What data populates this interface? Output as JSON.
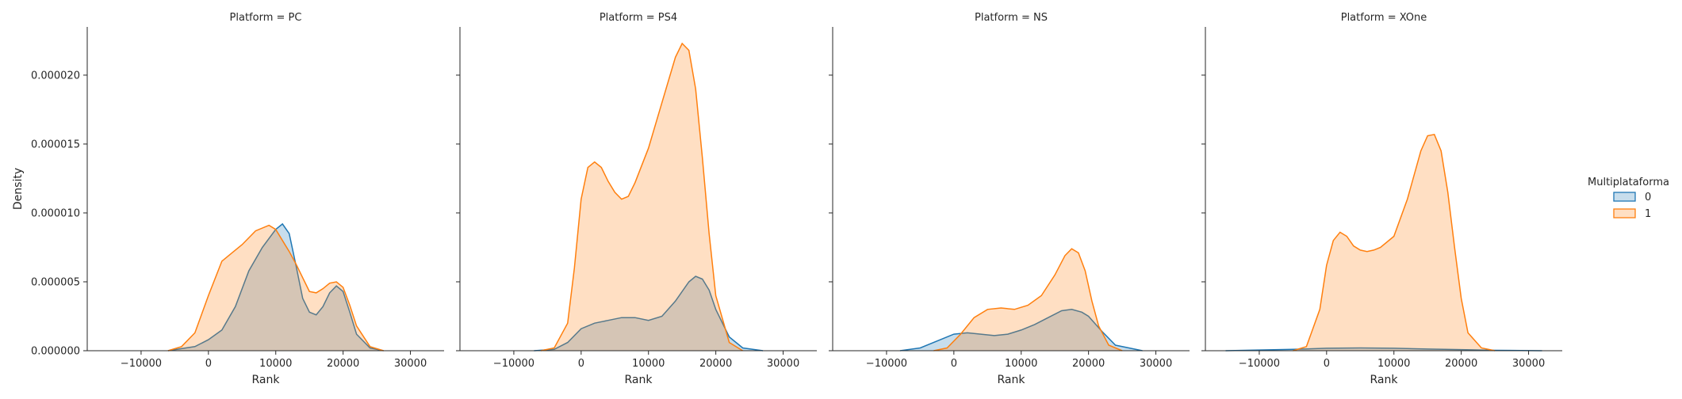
{
  "chart_data": {
    "type": "area",
    "kind": "kde-facet-grid",
    "ylabel": "Density",
    "xlabel": "Rank",
    "y_ticks": [
      "0.000000",
      "0.000005",
      "0.000010",
      "0.000015",
      "0.000020"
    ],
    "y_tick_values": [
      0,
      5e-06,
      1e-05,
      1.5e-05,
      2e-05
    ],
    "x_ticks": [
      "−10000",
      "0",
      "10000",
      "20000",
      "30000"
    ],
    "x_tick_values": [
      -10000,
      0,
      10000,
      20000,
      30000
    ],
    "xlim": [
      -18000,
      35000
    ],
    "ylim": [
      0,
      2.35e-05
    ],
    "legend": {
      "title": "Multiplataforma",
      "placement": "right",
      "entries": [
        {
          "label": "0",
          "color": "#1f77b4"
        },
        {
          "label": "1",
          "color": "#ff7f0e"
        }
      ]
    },
    "colors": {
      "0": "#1f77b4",
      "1": "#ff7f0e"
    },
    "panels": [
      {
        "title": "Platform = PC",
        "series": [
          {
            "name": "0",
            "x": [
              -6000,
              -2000,
              0,
              2000,
              4000,
              6000,
              8000,
              10000,
              11000,
              12000,
              13000,
              14000,
              15000,
              16000,
              17000,
              18000,
              19000,
              20000,
              21000,
              22000,
              24000,
              26000
            ],
            "y": [
              0,
              3e-07,
              8e-07,
              1.5e-06,
              3.2e-06,
              5.8e-06,
              7.5e-06,
              8.8e-06,
              9.2e-06,
              8.5e-06,
              6.2e-06,
              3.8e-06,
              2.8e-06,
              2.6e-06,
              3.2e-06,
              4.2e-06,
              4.7e-06,
              4.3e-06,
              2.8e-06,
              1.2e-06,
              2e-07,
              0
            ]
          },
          {
            "name": "1",
            "x": [
              -6000,
              -4000,
              -2000,
              0,
              2000,
              3500,
              5000,
              7000,
              9000,
              10000,
              11000,
              12000,
              13000,
              14000,
              15000,
              16000,
              17000,
              18000,
              19000,
              20000,
              21000,
              22000,
              24000,
              26000
            ],
            "y": [
              0,
              3e-07,
              1.3e-06,
              4e-06,
              6.5e-06,
              7.1e-06,
              7.7e-06,
              8.7e-06,
              9.1e-06,
              8.8e-06,
              8e-06,
              7.2e-06,
              6.3e-06,
              5.3e-06,
              4.3e-06,
              4.2e-06,
              4.5e-06,
              4.9e-06,
              5e-06,
              4.6e-06,
              3.3e-06,
              1.8e-06,
              3e-07,
              0
            ]
          }
        ]
      },
      {
        "title": "Platform = PS4",
        "series": [
          {
            "name": "0",
            "x": [
              -7000,
              -4000,
              -2000,
              0,
              2000,
              4000,
              6000,
              8000,
              10000,
              12000,
              14000,
              16000,
              17000,
              18000,
              19000,
              20000,
              22000,
              24000,
              27000
            ],
            "y": [
              0,
              1e-07,
              6e-07,
              1.6e-06,
              2e-06,
              2.2e-06,
              2.4e-06,
              2.4e-06,
              2.2e-06,
              2.5e-06,
              3.6e-06,
              5e-06,
              5.4e-06,
              5.2e-06,
              4.4e-06,
              3e-06,
              1e-06,
              2e-07,
              0
            ]
          },
          {
            "name": "1",
            "x": [
              -6000,
              -4000,
              -2000,
              -1000,
              0,
              1000,
              2000,
              3000,
              4000,
              5000,
              6000,
              7000,
              8000,
              10000,
              12000,
              14000,
              15000,
              16000,
              17000,
              18000,
              19000,
              20000,
              22000,
              24000
            ],
            "y": [
              0,
              2e-07,
              2e-06,
              6e-06,
              1.1e-05,
              1.33e-05,
              1.37e-05,
              1.33e-05,
              1.23e-05,
              1.15e-05,
              1.1e-05,
              1.12e-05,
              1.22e-05,
              1.47e-05,
              1.8e-05,
              2.13e-05,
              2.23e-05,
              2.18e-05,
              1.9e-05,
              1.4e-05,
              8.5e-06,
              4e-06,
              6e-07,
              0
            ]
          }
        ]
      },
      {
        "title": "Platform = NS",
        "series": [
          {
            "name": "0",
            "x": [
              -8000,
              -5000,
              -2000,
              0,
              2000,
              4000,
              6000,
              8000,
              10000,
              12000,
              14000,
              16000,
              17500,
              19000,
              20000,
              22000,
              24000,
              28000
            ],
            "y": [
              0,
              2e-07,
              8e-07,
              1.2e-06,
              1.3e-06,
              1.2e-06,
              1.1e-06,
              1.2e-06,
              1.5e-06,
              1.9e-06,
              2.4e-06,
              2.9e-06,
              3e-06,
              2.8e-06,
              2.5e-06,
              1.4e-06,
              4e-07,
              0
            ]
          },
          {
            "name": "1",
            "x": [
              -3000,
              -1000,
              1000,
              3000,
              5000,
              7000,
              9000,
              11000,
              13000,
              15000,
              16500,
              17500,
              18500,
              19500,
              20500,
              21500,
              23000,
              25000
            ],
            "y": [
              0,
              2e-07,
              1.2e-06,
              2.4e-06,
              3e-06,
              3.1e-06,
              3e-06,
              3.3e-06,
              4e-06,
              5.5e-06,
              6.9e-06,
              7.4e-06,
              7.1e-06,
              5.8e-06,
              3.6e-06,
              1.8e-06,
              4e-07,
              0
            ]
          }
        ]
      },
      {
        "title": "Platform = XOne",
        "series": [
          {
            "name": "0",
            "x": [
              -15000,
              -10000,
              -5000,
              0,
              5000,
              10000,
              15000,
              20000,
              25000,
              32000
            ],
            "y": [
              0,
              5e-08,
              1e-07,
              1.8e-07,
              2e-07,
              1.8e-07,
              1.2e-07,
              8e-08,
              3e-08,
              0
            ]
          },
          {
            "name": "1",
            "x": [
              -5000,
              -3000,
              -1000,
              0,
              1000,
              2000,
              3000,
              4000,
              5000,
              6000,
              7000,
              8000,
              10000,
              12000,
              14000,
              15000,
              16000,
              17000,
              18000,
              19000,
              20000,
              21000,
              23000,
              25000
            ],
            "y": [
              0,
              3e-07,
              3e-06,
              6.2e-06,
              8e-06,
              8.6e-06,
              8.3e-06,
              7.6e-06,
              7.3e-06,
              7.2e-06,
              7.3e-06,
              7.5e-06,
              8.3e-06,
              1.1e-05,
              1.45e-05,
              1.56e-05,
              1.57e-05,
              1.45e-05,
              1.15e-05,
              7.5e-06,
              3.8e-06,
              1.3e-06,
              2e-07,
              0
            ]
          }
        ]
      }
    ]
  }
}
